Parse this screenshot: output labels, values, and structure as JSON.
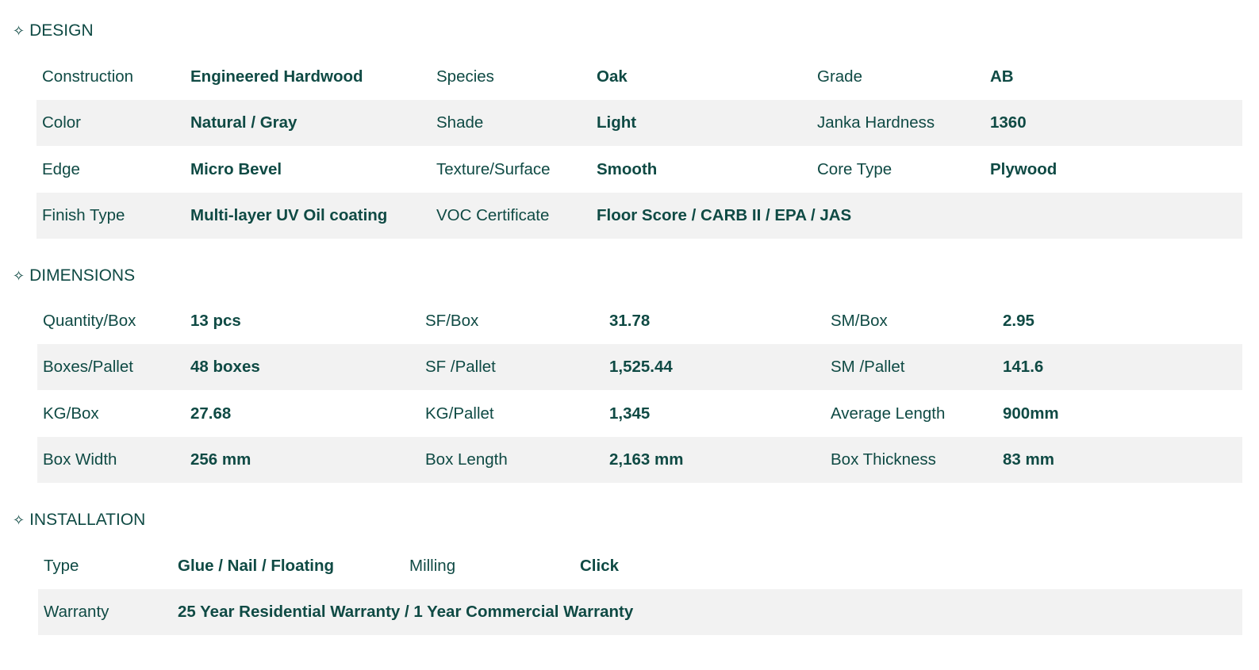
{
  "colors": {
    "text": "#0f4a44",
    "stripe": "#f2f2f2"
  },
  "sections": [
    {
      "title": "DESIGN",
      "icon": "sparkle-icon",
      "cols": [
        53,
        240,
        550,
        752,
        1030,
        1248
      ],
      "rowLeft": 46,
      "rows": [
        [
          [
            "Construction",
            "Engineered Hardwood"
          ],
          [
            "Species",
            "Oak"
          ],
          [
            "Grade",
            "AB"
          ]
        ],
        [
          [
            "Color",
            "Natural / Gray"
          ],
          [
            "Shade",
            "Light"
          ],
          [
            "Janka Hardness",
            "1360"
          ]
        ],
        [
          [
            "Edge",
            "Micro Bevel"
          ],
          [
            "Texture/Surface",
            "Smooth"
          ],
          [
            "Core Type",
            "Plywood"
          ]
        ],
        [
          [
            "Finish Type",
            "Multi-layer UV Oil coating"
          ],
          [
            "VOC Certificate",
            "Floor Score / CARB II / EPA / JAS"
          ]
        ]
      ]
    },
    {
      "title": "DIMENSIONS",
      "icon": "sparkle-icon",
      "cols": [
        54,
        240,
        536,
        768,
        1047,
        1264
      ],
      "rowLeft": 47,
      "rows": [
        [
          [
            "Quantity/Box",
            "13 pcs"
          ],
          [
            "SF/Box",
            "31.78"
          ],
          [
            "SM/Box",
            "2.95"
          ]
        ],
        [
          [
            "Boxes/Pallet",
            "48 boxes"
          ],
          [
            "SF /Pallet",
            "1,525.44"
          ],
          [
            "SM /Pallet",
            "141.6"
          ]
        ],
        [
          [
            "KG/Box",
            "27.68"
          ],
          [
            "KG/Pallet",
            "1,345"
          ],
          [
            "Average Length",
            "900mm"
          ]
        ],
        [
          [
            "Box Width",
            "256 mm"
          ],
          [
            "Box Length",
            "2,163 mm"
          ],
          [
            "Box Thickness",
            "83 mm"
          ]
        ]
      ]
    },
    {
      "title": "INSTALLATION",
      "icon": "sparkle-icon",
      "cols": [
        55,
        224,
        516,
        731
      ],
      "rowLeft": 48,
      "rows": [
        [
          [
            "Type",
            "Glue / Nail / Floating"
          ],
          [
            "Milling",
            "Click"
          ]
        ],
        [
          [
            "Warranty",
            "25 Year Residential Warranty / 1 Year Commercial Warranty"
          ]
        ]
      ]
    }
  ]
}
